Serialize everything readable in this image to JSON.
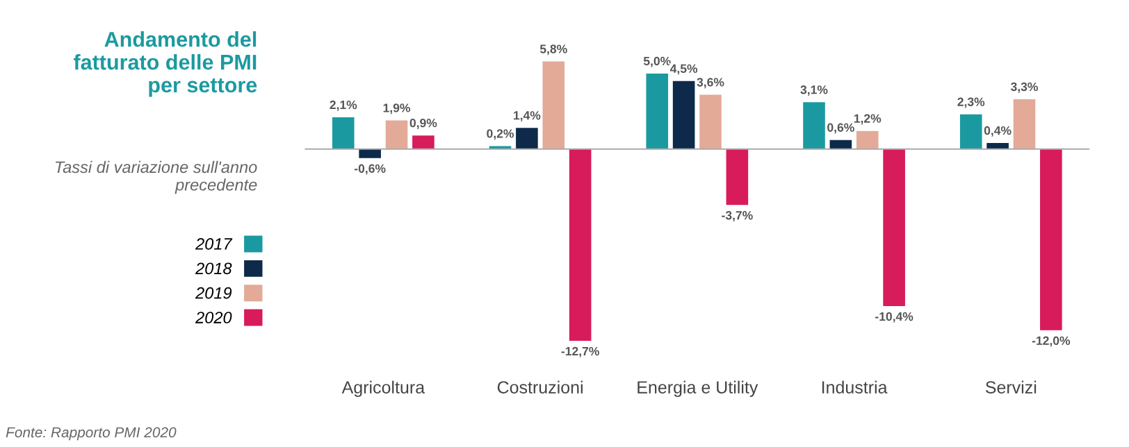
{
  "chart_data": {
    "type": "bar",
    "title": "Andamento del\nfatturato delle PMI\nper settore",
    "subtitle": "Tassi di variazione sull'anno\nprecedente",
    "categories": [
      "Agricoltura",
      "Costruzioni",
      "Energia e Utility",
      "Industria",
      "Servizi"
    ],
    "series": [
      {
        "name": "2017",
        "color": "#1a9aa0",
        "values": [
          2.1,
          0.2,
          5.0,
          3.1,
          2.3
        ],
        "value_labels": [
          "2,1%",
          "0,2%",
          "5,0%",
          "3,1%",
          "2,3%"
        ]
      },
      {
        "name": "2018",
        "color": "#0d2a4a",
        "values": [
          -0.6,
          1.4,
          4.5,
          0.6,
          0.4
        ],
        "value_labels": [
          "-0,6%",
          "1,4%",
          "4,5%",
          "0,6%",
          "0,4%"
        ]
      },
      {
        "name": "2019",
        "color": "#e3aa98",
        "values": [
          1.9,
          5.8,
          3.6,
          1.2,
          3.3
        ],
        "value_labels": [
          "1,9%",
          "5,8%",
          "3,6%",
          "1,2%",
          "3,3%"
        ]
      },
      {
        "name": "2020",
        "color": "#d81b5b",
        "values": [
          0.9,
          -12.7,
          -3.7,
          -10.4,
          -12.0
        ],
        "value_labels": [
          "0,9%",
          "-12,7%",
          "-3,7%",
          "-10,4%",
          "-12,0%"
        ]
      }
    ],
    "legend": "left",
    "annotations": [
      "Fonte: Rapporto PMI 2020"
    ]
  }
}
